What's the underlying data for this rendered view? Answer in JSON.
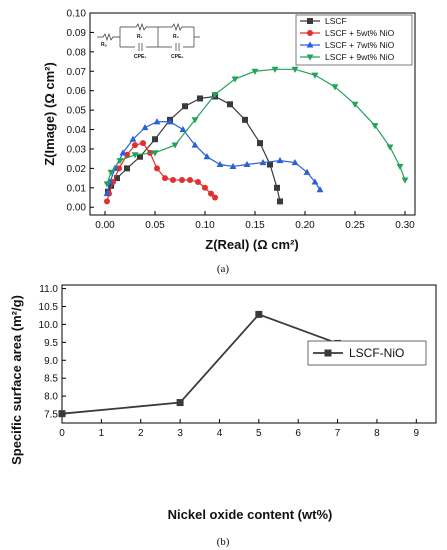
{
  "chart_data": [
    {
      "type": "scatter",
      "caption": "(a)",
      "xlabel": "Z(Real) (Ω cm²)",
      "ylabel": "Z(Image) (Ω cm²)",
      "xlim": [
        -0.015,
        0.31
      ],
      "ylim": [
        -0.004,
        0.1
      ],
      "x_ticks": [
        "0.00",
        "0.05",
        "0.10",
        "0.15",
        "0.20",
        "0.25",
        "0.30"
      ],
      "y_ticks": [
        "0.00",
        "0.01",
        "0.02",
        "0.03",
        "0.04",
        "0.05",
        "0.06",
        "0.07",
        "0.08",
        "0.09",
        "0.10"
      ],
      "legend_position": "top-right",
      "circuit_labels": [
        "Rₒ",
        "R₁",
        "R₂",
        "CPE₁",
        "CPE₂"
      ],
      "series": [
        {
          "name": "LSCF",
          "color": "#3a3a3a",
          "marker": "square",
          "x": [
            0.003,
            0.006,
            0.012,
            0.022,
            0.035,
            0.05,
            0.065,
            0.08,
            0.095,
            0.11,
            0.125,
            0.14,
            0.155,
            0.165,
            0.172,
            0.175
          ],
          "y": [
            0.008,
            0.011,
            0.015,
            0.02,
            0.026,
            0.035,
            0.045,
            0.052,
            0.056,
            0.057,
            0.053,
            0.045,
            0.033,
            0.022,
            0.01,
            0.003
          ]
        },
        {
          "name": "LSCF + 5wt% NiO",
          "color": "#e03030",
          "marker": "circle",
          "x": [
            0.002,
            0.004,
            0.008,
            0.014,
            0.022,
            0.03,
            0.038,
            0.045,
            0.052,
            0.06,
            0.068,
            0.077,
            0.085,
            0.093,
            0.1,
            0.106,
            0.11
          ],
          "y": [
            0.003,
            0.007,
            0.013,
            0.02,
            0.027,
            0.032,
            0.033,
            0.028,
            0.02,
            0.015,
            0.014,
            0.014,
            0.014,
            0.013,
            0.01,
            0.007,
            0.005
          ]
        },
        {
          "name": "LSCF + 7wt% NiO",
          "color": "#2b5fd9",
          "marker": "triangle-up",
          "x": [
            0.002,
            0.005,
            0.01,
            0.018,
            0.028,
            0.04,
            0.052,
            0.065,
            0.078,
            0.09,
            0.102,
            0.115,
            0.128,
            0.142,
            0.158,
            0.175,
            0.19,
            0.202,
            0.21,
            0.215
          ],
          "y": [
            0.007,
            0.013,
            0.02,
            0.028,
            0.035,
            0.041,
            0.044,
            0.044,
            0.04,
            0.032,
            0.026,
            0.022,
            0.021,
            0.022,
            0.023,
            0.024,
            0.023,
            0.018,
            0.013,
            0.009
          ]
        },
        {
          "name": "LSCF + 9wt% NiO",
          "color": "#22a35a",
          "marker": "triangle-down",
          "x": [
            0.002,
            0.006,
            0.015,
            0.03,
            0.05,
            0.07,
            0.09,
            0.11,
            0.13,
            0.15,
            0.17,
            0.19,
            0.21,
            0.23,
            0.25,
            0.27,
            0.285,
            0.295,
            0.3
          ],
          "y": [
            0.012,
            0.018,
            0.024,
            0.027,
            0.028,
            0.032,
            0.045,
            0.058,
            0.066,
            0.07,
            0.071,
            0.071,
            0.068,
            0.062,
            0.053,
            0.042,
            0.031,
            0.021,
            0.014
          ]
        }
      ]
    },
    {
      "type": "line",
      "caption": "(b)",
      "xlabel": "Nickel oxide content (wt%)",
      "ylabel": "Specific surface area (m²/g)",
      "xlim": [
        0,
        9.5
      ],
      "ylim": [
        7.25,
        11.1
      ],
      "x_ticks": [
        "0",
        "1",
        "2",
        "3",
        "4",
        "5",
        "6",
        "7",
        "8",
        "9"
      ],
      "y_ticks": [
        "7.5",
        "8.0",
        "8.5",
        "9.0",
        "9.5",
        "10.0",
        "10.5",
        "11.0"
      ],
      "legend_position": "right",
      "series": [
        {
          "name": "LSCF-NiO",
          "color": "#3a3a3a",
          "marker": "square",
          "x": [
            0,
            3,
            5,
            7,
            9
          ],
          "y": [
            7.51,
            7.82,
            10.28,
            9.47,
            9.05
          ]
        }
      ]
    }
  ]
}
